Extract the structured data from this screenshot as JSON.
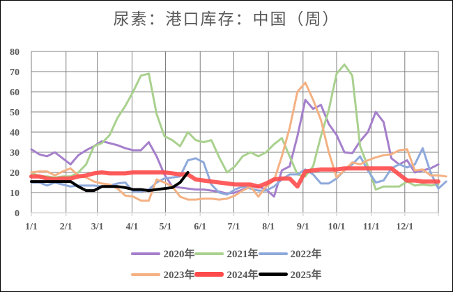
{
  "title": "尿素：港口库存：中国（周）",
  "chart_data": {
    "type": "line",
    "title": "尿素：港口库存：中国（周）",
    "xlabel": "",
    "ylabel": "",
    "ylim": [
      0,
      80
    ],
    "yticks": [
      0,
      10,
      20,
      30,
      40,
      50,
      60,
      70,
      80
    ],
    "xticks": [
      "1/1",
      "2/1",
      "3/1",
      "4/1",
      "5/1",
      "6/1",
      "7/1",
      "8/1",
      "9/1",
      "10/1",
      "11/1",
      "12/1"
    ],
    "grid": true,
    "legend_position": "bottom",
    "x_unit": "week index (0 = 1/1, 52 weeks per year)",
    "series": [
      {
        "name": "2020年",
        "color": "#A57FCB",
        "width": 3,
        "values": [
          31.5,
          29,
          28,
          30,
          27,
          24,
          28.5,
          31,
          33,
          35.5,
          34.5,
          33.5,
          32,
          31,
          31,
          35,
          28,
          19,
          13,
          12.5,
          12,
          11.5,
          11.5,
          11,
          10.5,
          9.5,
          10,
          11.5,
          13,
          13,
          11.5,
          8,
          21,
          23,
          38,
          56,
          51.5,
          53.5,
          44,
          38.5,
          30,
          29.5,
          35.5,
          40,
          50,
          45,
          27,
          24,
          26,
          20,
          21,
          22,
          24
        ]
      },
      {
        "name": "2021年",
        "color": "#A9D18E",
        "width": 3,
        "values": [
          20,
          18,
          18,
          17.5,
          18,
          18,
          20,
          24,
          33,
          34.5,
          38.5,
          47,
          53,
          60,
          68,
          69,
          49,
          38,
          36,
          33,
          40,
          36,
          35,
          36,
          27.5,
          20,
          23,
          28,
          30,
          28,
          30,
          34,
          37,
          28,
          19,
          18,
          23,
          38,
          51,
          69,
          73.5,
          68,
          33,
          23,
          11.5,
          13,
          13,
          13,
          15.5,
          13.5,
          14,
          13.5,
          14
        ]
      },
      {
        "name": "2022年",
        "color": "#8EA9DB",
        "width": 3,
        "values": [
          15,
          15,
          13.5,
          15,
          14,
          13,
          13.5,
          13.5,
          13.5,
          13,
          13.5,
          14.5,
          15,
          10.5,
          10.5,
          11.5,
          15,
          17,
          17.5,
          18,
          26,
          27,
          25,
          14,
          10,
          9,
          11.5,
          13,
          12,
          11,
          11,
          13,
          16.5,
          19,
          19,
          21.5,
          19,
          14.5,
          14.5,
          17,
          21,
          24,
          28,
          21,
          15,
          16,
          22,
          24,
          22.5,
          24,
          32,
          20,
          12,
          15.5
        ]
      },
      {
        "name": "2023年",
        "color": "#F4B183",
        "width": 3,
        "values": [
          20,
          20.5,
          20.5,
          18.5,
          20.5,
          22,
          18.5,
          17.5,
          15.5,
          14.5,
          14,
          12,
          8.5,
          8,
          6,
          6,
          16.5,
          15,
          13,
          8,
          6.5,
          6.5,
          7,
          7,
          6.5,
          7,
          8.5,
          11,
          13,
          8,
          13,
          16,
          28,
          42,
          60,
          64.5,
          56,
          46,
          30,
          17.5,
          21,
          25,
          24,
          26,
          27.5,
          28.5,
          29,
          31,
          31.5,
          21,
          21.5,
          18.5,
          18.5,
          18
        ]
      },
      {
        "name": "2024年",
        "color": "#FF4B4B",
        "width": 6,
        "values": [
          18,
          18,
          17,
          16.5,
          17,
          17,
          18,
          18.5,
          19.5,
          20,
          19.5,
          19.5,
          19.5,
          20,
          20,
          20,
          20,
          20,
          19.5,
          19,
          19,
          16.5,
          16,
          15.5,
          15,
          14.5,
          14,
          14,
          14,
          13,
          14.5,
          16.5,
          17,
          17,
          13,
          20.5,
          21,
          21.5,
          21.5,
          21.5,
          22,
          22,
          22,
          22,
          22,
          22,
          22,
          19,
          16,
          16,
          15.5,
          15.5,
          15.5
        ]
      },
      {
        "name": "2025年",
        "color": "#000000",
        "width": 4,
        "values": [
          15.5,
          15.5,
          15.5,
          15.5,
          15.5,
          15.5,
          13,
          11,
          11,
          13,
          13,
          13,
          12.5,
          11.5,
          11.5,
          11,
          11.5,
          12,
          12.5,
          15,
          20
        ]
      }
    ]
  },
  "legend": {
    "rows": [
      [
        {
          "label": "2020年",
          "color": "#A57FCB",
          "thickness": 4
        },
        {
          "label": "2021年",
          "color": "#A9D18E",
          "thickness": 4
        },
        {
          "label": "2022年",
          "color": "#8EA9DB",
          "thickness": 4
        }
      ],
      [
        {
          "label": "2023年",
          "color": "#F4B183",
          "thickness": 4
        },
        {
          "label": "2024年",
          "color": "#FF4B4B",
          "thickness": 7
        },
        {
          "label": "2025年",
          "color": "#000000",
          "thickness": 5
        }
      ]
    ]
  }
}
